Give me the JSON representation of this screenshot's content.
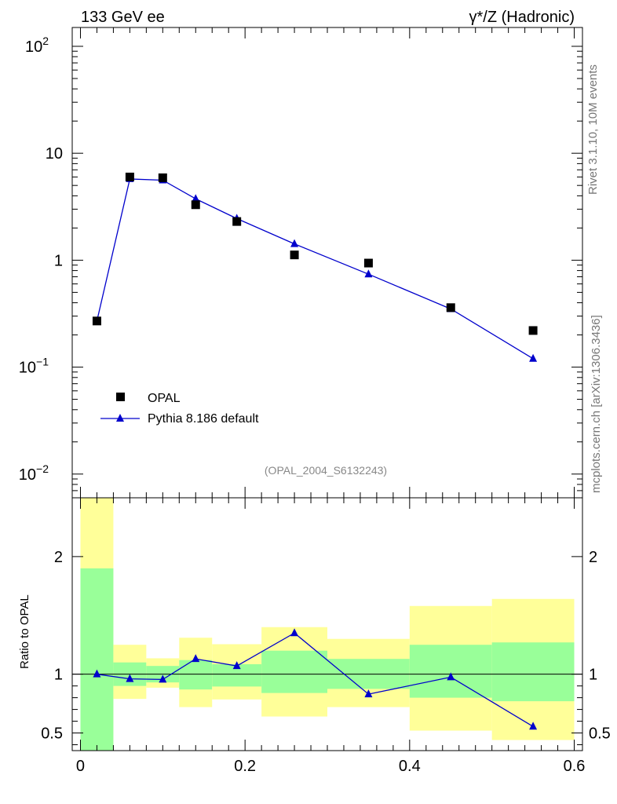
{
  "header": {
    "left_title": "133 GeV ee",
    "right_title": "γ*/Z (Hadronic)"
  },
  "side_labels": {
    "rivet": "Rivet 3.1.10,  10M events",
    "mcplots": "mcplots.cern.ch [arXiv:1306.3436]"
  },
  "analysis_tag": "(OPAL_2004_S6132243)",
  "legend": {
    "data_label": "OPAL",
    "mc_label": "Pythia 8.186 default"
  },
  "ratio_ylabel": "Ratio to OPAL",
  "colors": {
    "mc": "#0000cc",
    "data": "#000000",
    "band_inner": "#99ff99",
    "band_outer": "#ffff99",
    "side_text": "#777777"
  },
  "chart_data": {
    "type": "scatter",
    "main": {
      "yscale": "log",
      "ylim": [
        0.006,
        150
      ],
      "ytick_labels": [
        {
          "value": 0.01,
          "label": "10",
          "exp": "−2"
        },
        {
          "value": 0.1,
          "label": "10",
          "exp": "−1"
        },
        {
          "value": 1,
          "label": "1",
          "exp": ""
        },
        {
          "value": 10,
          "label": "10",
          "exp": ""
        },
        {
          "value": 100,
          "label": "10",
          "exp": "2"
        }
      ]
    },
    "xlim": [
      -0.01,
      0.61
    ],
    "xticks": [
      0,
      0.2,
      0.4,
      0.6
    ],
    "xtick_labels": [
      "0",
      "0.2",
      "0.4",
      "0.6"
    ],
    "series": [
      {
        "name": "OPAL",
        "marker": "square",
        "x": [
          0.02,
          0.06,
          0.1,
          0.14,
          0.19,
          0.26,
          0.35,
          0.45,
          0.55
        ],
        "values": [
          0.27,
          6.0,
          5.9,
          3.3,
          2.3,
          1.12,
          0.94,
          0.36,
          0.22
        ]
      },
      {
        "name": "Pythia 8.186 default",
        "marker": "triangle",
        "x": [
          0.02,
          0.06,
          0.1,
          0.14,
          0.19,
          0.26,
          0.35,
          0.45,
          0.55
        ],
        "values": [
          0.27,
          5.75,
          5.6,
          3.75,
          2.45,
          1.42,
          0.74,
          0.35,
          0.12
        ]
      }
    ],
    "ratio": {
      "ylim": [
        0.35,
        2.5
      ],
      "yticks": [
        0.5,
        1,
        2
      ],
      "ytick_labels": [
        "0.5",
        "1",
        "2"
      ],
      "reference": 1,
      "x": [
        0.02,
        0.06,
        0.1,
        0.14,
        0.19,
        0.26,
        0.35,
        0.45,
        0.55
      ],
      "values": [
        1.0,
        0.96,
        0.955,
        1.13,
        1.07,
        1.35,
        0.83,
        0.975,
        0.555
      ],
      "bins": [
        {
          "lo": 0.0,
          "hi": 0.04,
          "inner": [
            0.0,
            1.9
          ],
          "outer": [
            0.0,
            3.0
          ]
        },
        {
          "lo": 0.04,
          "hi": 0.08,
          "inner": [
            0.9,
            1.1
          ],
          "outer": [
            0.79,
            1.25
          ]
        },
        {
          "lo": 0.08,
          "hi": 0.12,
          "inner": [
            0.93,
            1.07
          ],
          "outer": [
            0.885,
            1.135
          ]
        },
        {
          "lo": 0.12,
          "hi": 0.16,
          "inner": [
            0.87,
            1.12
          ],
          "outer": [
            0.72,
            1.31
          ]
        },
        {
          "lo": 0.16,
          "hi": 0.22,
          "inner": [
            0.895,
            1.085
          ],
          "outer": [
            0.785,
            1.255
          ]
        },
        {
          "lo": 0.22,
          "hi": 0.3,
          "inner": [
            0.84,
            1.2
          ],
          "outer": [
            0.64,
            1.4
          ]
        },
        {
          "lo": 0.3,
          "hi": 0.4,
          "inner": [
            0.875,
            1.13
          ],
          "outer": [
            0.72,
            1.3
          ]
        },
        {
          "lo": 0.4,
          "hi": 0.5,
          "inner": [
            0.8,
            1.25
          ],
          "outer": [
            0.52,
            1.58
          ]
        },
        {
          "lo": 0.5,
          "hi": 0.6,
          "inner": [
            0.77,
            1.27
          ],
          "outer": [
            0.44,
            1.64
          ]
        }
      ]
    }
  }
}
